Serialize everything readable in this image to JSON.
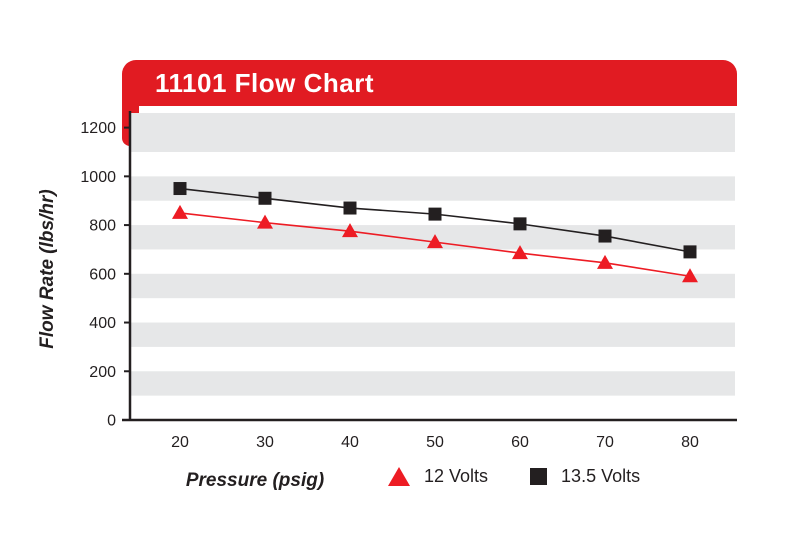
{
  "header": {
    "title": "11101 Flow Chart"
  },
  "colors": {
    "banner_red": "#e11b22",
    "series_red": "#ed1c24",
    "series_black": "#231f20",
    "stripe_gray": "#e6e7e8",
    "axis_black": "#231f20",
    "tick_text": "#231f20"
  },
  "chart_data": {
    "type": "line",
    "title": "11101 Flow Chart",
    "xlabel": "Pressure (psig)",
    "ylabel": "Flow Rate (lbs/hr)",
    "x": [
      20,
      30,
      40,
      50,
      60,
      70,
      80
    ],
    "xticks": [
      20,
      30,
      40,
      50,
      60,
      70,
      80
    ],
    "yticks": [
      0,
      200,
      400,
      600,
      800,
      1000,
      1200
    ],
    "xlim": [
      20,
      80
    ],
    "ylim": [
      0,
      1260
    ],
    "grid": "horizontal-striped-bands",
    "legend_position": "bottom",
    "series": [
      {
        "name": "12 Volts",
        "marker": "triangle",
        "color": "#ed1c24",
        "values": [
          850,
          810,
          775,
          730,
          685,
          645,
          590
        ]
      },
      {
        "name": "13.5 Volts",
        "marker": "square",
        "color": "#231f20",
        "values": [
          950,
          910,
          870,
          845,
          805,
          755,
          690
        ]
      }
    ]
  }
}
